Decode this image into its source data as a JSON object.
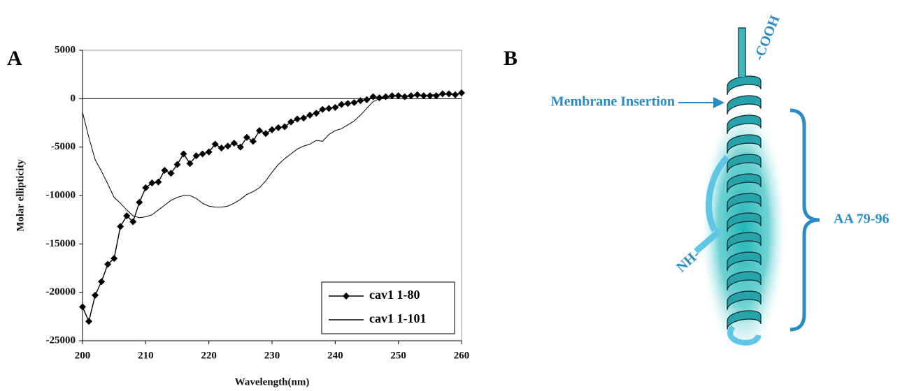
{
  "panel_labels": [
    "A",
    "B"
  ],
  "chart_data": {
    "type": "line",
    "x_label": "Wavelength(nm)",
    "y_label": "Molar ellipticity",
    "x": [
      200,
      201,
      202,
      203,
      204,
      205,
      206,
      207,
      208,
      209,
      210,
      211,
      212,
      213,
      214,
      215,
      216,
      217,
      218,
      219,
      220,
      221,
      222,
      223,
      224,
      225,
      226,
      227,
      228,
      229,
      230,
      231,
      232,
      233,
      234,
      235,
      236,
      237,
      238,
      239,
      240,
      241,
      242,
      243,
      244,
      245,
      246,
      247,
      248,
      249,
      250,
      251,
      252,
      253,
      254,
      255,
      256,
      257,
      258,
      259,
      260
    ],
    "series": [
      {
        "name": "cav1 1-80",
        "color": "#000000",
        "marker": "diamond",
        "values": [
          -21500,
          -23000,
          -20300,
          -18900,
          -17100,
          -16500,
          -13200,
          -12100,
          -12700,
          -10700,
          -9200,
          -8700,
          -8600,
          -7400,
          -7700,
          -6800,
          -5700,
          -6700,
          -5900,
          -5700,
          -5500,
          -4700,
          -5100,
          -4900,
          -4600,
          -5000,
          -4000,
          -4400,
          -3300,
          -3600,
          -3200,
          -3000,
          -2900,
          -2400,
          -2100,
          -2000,
          -1700,
          -1500,
          -1100,
          -1000,
          -900,
          -600,
          -500,
          -400,
          -200,
          -100,
          200,
          100,
          200,
          300,
          300,
          200,
          300,
          400,
          300,
          300,
          300,
          500,
          500,
          400,
          600
        ]
      },
      {
        "name": "cav1 1-101",
        "color": "#000000",
        "marker": "none",
        "values": [
          -1400,
          -4000,
          -6300,
          -7500,
          -8800,
          -10200,
          -10800,
          -11500,
          -12100,
          -12300,
          -12200,
          -12000,
          -11500,
          -11000,
          -10500,
          -10200,
          -10000,
          -10000,
          -10300,
          -10800,
          -11100,
          -11200,
          -11200,
          -11100,
          -10800,
          -10400,
          -9900,
          -9600,
          -9200,
          -8500,
          -7600,
          -6800,
          -6200,
          -5700,
          -5200,
          -4900,
          -4700,
          -4300,
          -4400,
          -3700,
          -3300,
          -3100,
          -2700,
          -2300,
          -1700,
          -1000,
          -300,
          0,
          100,
          200,
          300,
          300,
          300,
          300,
          300,
          400,
          400,
          400,
          500,
          500,
          500
        ]
      }
    ],
    "xlim": [
      200,
      260
    ],
    "xticks": [
      200,
      210,
      220,
      230,
      240,
      250,
      260
    ],
    "ylim": [
      -25000,
      5000
    ],
    "yticks": [
      5000,
      0,
      -5000,
      -10000,
      -15000,
      -20000,
      -25000
    ],
    "legend": "lower right"
  },
  "diagram": {
    "cooh": "-COOH",
    "membrane_insertion": "Membrane Insertion",
    "nh": "NH-",
    "range": "AA 79-96"
  }
}
